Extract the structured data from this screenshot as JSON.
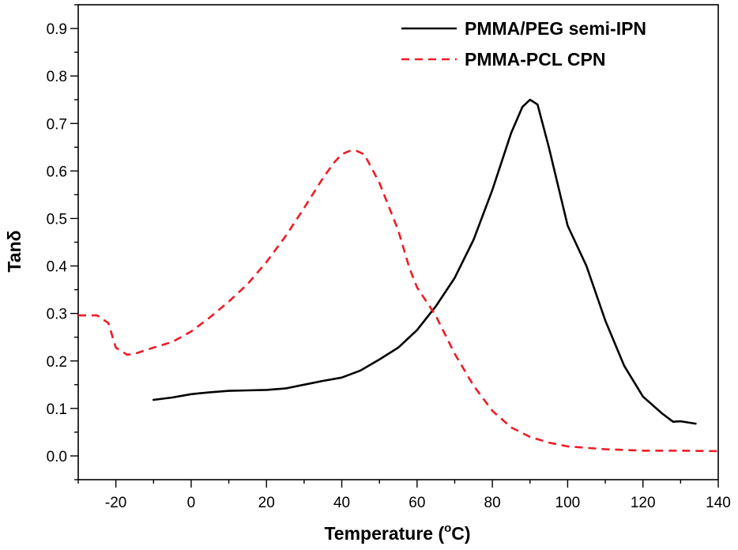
{
  "chart_data": {
    "type": "line",
    "title": "",
    "xlabel": "Temperature (",
    "xlabel_unit_sup": "o",
    "xlabel_unit": "C)",
    "ylabel": "Tanδ",
    "xlim": [
      -30,
      140
    ],
    "ylim": [
      -0.05,
      0.95
    ],
    "xticks": [
      -20,
      0,
      20,
      40,
      60,
      80,
      100,
      120,
      140
    ],
    "xtick_labels": [
      "-20",
      "0",
      "20",
      "40",
      "60",
      "80",
      "100",
      "120",
      "140"
    ],
    "yticks": [
      0.0,
      0.1,
      0.2,
      0.3,
      0.4,
      0.5,
      0.6,
      0.7,
      0.8,
      0.9
    ],
    "ytick_labels": [
      "0.0",
      "0.1",
      "0.2",
      "0.3",
      "0.4",
      "0.5",
      "0.6",
      "0.7",
      "0.8",
      "0.9"
    ],
    "legend_position": "top-right",
    "series": [
      {
        "name": "PMMA/PEG semi-IPN",
        "color": "#000000",
        "style": "solid",
        "x": [
          -10,
          -5,
          0,
          5,
          10,
          15,
          20,
          25,
          30,
          35,
          40,
          45,
          50,
          55,
          60,
          65,
          70,
          75,
          80,
          85,
          88,
          90,
          92,
          95,
          100,
          105,
          110,
          115,
          120,
          125,
          128,
          130,
          134
        ],
        "y": [
          0.118,
          0.123,
          0.13,
          0.134,
          0.137,
          0.138,
          0.139,
          0.142,
          0.15,
          0.158,
          0.165,
          0.18,
          0.203,
          0.228,
          0.265,
          0.315,
          0.375,
          0.455,
          0.56,
          0.68,
          0.735,
          0.75,
          0.74,
          0.65,
          0.485,
          0.4,
          0.285,
          0.19,
          0.125,
          0.09,
          0.072,
          0.073,
          0.068
        ]
      },
      {
        "name": "PMMA-PCL CPN",
        "color": "#ee1c25",
        "style": "dashed",
        "x": [
          -30,
          -25,
          -22,
          -20,
          -17,
          -15,
          -10,
          -5,
          0,
          5,
          10,
          15,
          20,
          25,
          30,
          35,
          38,
          40,
          42,
          44,
          46,
          50,
          55,
          58,
          60,
          65,
          70,
          75,
          80,
          85,
          90,
          95,
          100,
          110,
          120,
          130,
          140
        ],
        "y": [
          0.296,
          0.296,
          0.28,
          0.228,
          0.213,
          0.215,
          0.228,
          0.24,
          0.262,
          0.292,
          0.325,
          0.362,
          0.408,
          0.462,
          0.522,
          0.585,
          0.618,
          0.635,
          0.642,
          0.642,
          0.635,
          0.575,
          0.475,
          0.395,
          0.355,
          0.295,
          0.215,
          0.148,
          0.095,
          0.06,
          0.04,
          0.028,
          0.02,
          0.014,
          0.011,
          0.011,
          0.01
        ]
      }
    ]
  }
}
